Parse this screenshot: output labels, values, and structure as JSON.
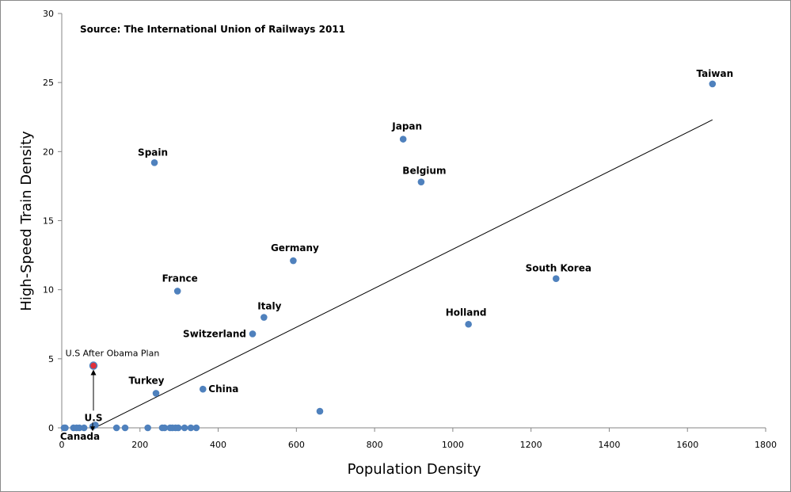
{
  "chart_data": {
    "type": "scatter",
    "title": "",
    "annotation": "Source: The International Union of Railways 2011",
    "xlabel": "Population Density",
    "ylabel": "High-Speed Train Density",
    "xlim": [
      0,
      1800
    ],
    "ylim": [
      0,
      30
    ],
    "xticks": [
      0,
      200,
      400,
      600,
      800,
      1000,
      1200,
      1400,
      1600,
      1800
    ],
    "yticks": [
      0,
      5,
      10,
      15,
      20,
      25,
      30
    ],
    "grid": false,
    "colors": {
      "point": "#4f81bd",
      "highlight": "#e0303a",
      "trend": "#000000",
      "frame": "#8a8a8a"
    },
    "labeled_points": [
      {
        "name": "Taiwan",
        "x": 1664,
        "y": 24.9
      },
      {
        "name": "Japan",
        "x": 873,
        "y": 20.9
      },
      {
        "name": "Spain",
        "x": 237,
        "y": 19.2
      },
      {
        "name": "Belgium",
        "x": 919,
        "y": 17.8
      },
      {
        "name": "Germany",
        "x": 592,
        "y": 12.1
      },
      {
        "name": "South Korea",
        "x": 1264,
        "y": 10.8
      },
      {
        "name": "France",
        "x": 296,
        "y": 9.9
      },
      {
        "name": "Italy",
        "x": 517,
        "y": 8.0
      },
      {
        "name": "Holland",
        "x": 1040,
        "y": 7.5
      },
      {
        "name": "Switzerland",
        "x": 488,
        "y": 6.8
      },
      {
        "name": "China",
        "x": 361,
        "y": 2.8
      },
      {
        "name": "Turkey",
        "x": 241,
        "y": 2.5
      },
      {
        "name": "U.S",
        "x": 79,
        "y": 0.1
      },
      {
        "name": "Canada",
        "x": 6,
        "y": 0
      }
    ],
    "highlight_point": {
      "name": "U.S After Obama Plan",
      "x": 81,
      "y": 4.5
    },
    "other_points": [
      {
        "x": 660,
        "y": 1.2
      },
      {
        "x": 9,
        "y": 0
      },
      {
        "x": 30,
        "y": 0
      },
      {
        "x": 38,
        "y": 0
      },
      {
        "x": 45,
        "y": 0
      },
      {
        "x": 57,
        "y": 0
      },
      {
        "x": 140,
        "y": 0
      },
      {
        "x": 162,
        "y": 0
      },
      {
        "x": 220,
        "y": 0
      },
      {
        "x": 257,
        "y": 0
      },
      {
        "x": 263,
        "y": 0
      },
      {
        "x": 277,
        "y": 0
      },
      {
        "x": 283,
        "y": 0
      },
      {
        "x": 291,
        "y": 0
      },
      {
        "x": 298,
        "y": 0
      },
      {
        "x": 314,
        "y": 0
      },
      {
        "x": 330,
        "y": 0
      },
      {
        "x": 344,
        "y": 0
      },
      {
        "x": 86,
        "y": 0.2
      }
    ],
    "trendline": {
      "x": [
        84,
        1664
      ],
      "y": [
        0,
        22.3
      ]
    }
  }
}
